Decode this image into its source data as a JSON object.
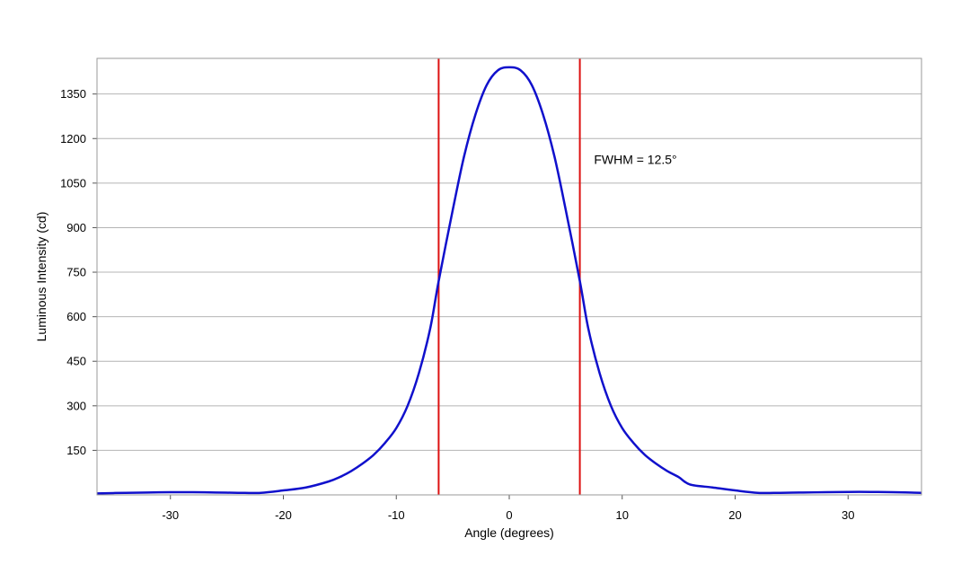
{
  "chart_data": {
    "type": "line",
    "title": "",
    "xlabel": "Angle (degrees)",
    "ylabel": "Luminous Intensity (cd)",
    "xlim": [
      -36.5,
      36.5
    ],
    "ylim": [
      0,
      1470
    ],
    "x_ticks": [
      -30,
      -20,
      -10,
      0,
      10,
      20,
      30
    ],
    "x_tick_labels": [
      "-30",
      "-20",
      "-10",
      "0",
      "10",
      "20",
      "30"
    ],
    "y_ticks": [
      150,
      300,
      450,
      600,
      750,
      900,
      1050,
      1200,
      1350
    ],
    "y_tick_labels": [
      "150",
      "300",
      "450",
      "600",
      "750",
      "900",
      "1050",
      "1200",
      "1350"
    ],
    "grid": "horizontal",
    "colors": {
      "series": "#1010cc",
      "marker_lines": "#dd1111",
      "grid": "#b4b4b4",
      "frame": "#999999"
    },
    "series": [
      {
        "x": [
          -36.5,
          -34,
          -32,
          -30,
          -28,
          -26,
          -24,
          -22,
          -20,
          -18,
          -16,
          -15,
          -14,
          -13,
          -12,
          -11,
          -10,
          -9,
          -8,
          -7,
          -6.25,
          -5,
          -4,
          -3,
          -2,
          -1,
          0,
          1,
          2,
          3,
          4,
          5,
          6.25,
          7,
          8,
          9,
          10,
          11,
          12,
          13,
          14,
          15,
          16,
          18,
          20,
          22,
          24,
          26,
          28,
          30,
          32,
          34,
          36.5
        ],
        "y": [
          5,
          7,
          8,
          9,
          9,
          8,
          7,
          7,
          15,
          25,
          45,
          60,
          80,
          105,
          135,
          175,
          225,
          300,
          410,
          560,
          720,
          960,
          1140,
          1280,
          1380,
          1430,
          1440,
          1430,
          1380,
          1280,
          1140,
          960,
          720,
          560,
          410,
          300,
          225,
          175,
          135,
          105,
          80,
          60,
          35,
          25,
          15,
          7,
          7,
          8,
          9,
          10,
          10,
          9,
          7
        ]
      }
    ],
    "vertical_lines": [
      -6.25,
      6.25
    ],
    "annotations": [
      {
        "text": "FWHM = 12.5°",
        "x": 7.5,
        "y": 1115
      }
    ]
  }
}
